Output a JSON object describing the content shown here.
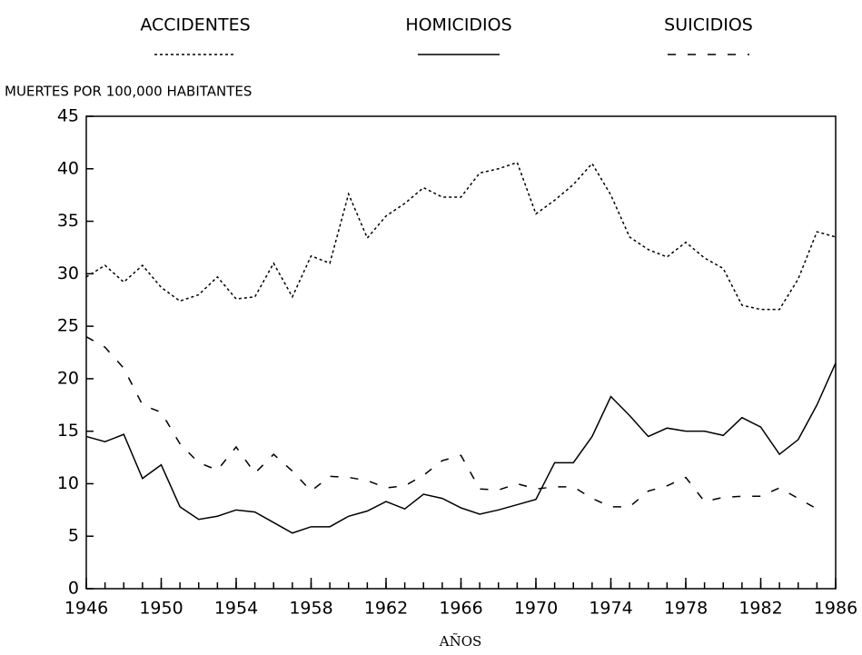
{
  "chart_data": {
    "type": "line",
    "y_label": "MUERTES POR 100,000 HABITANTES",
    "x_label": "AÑOS",
    "x": [
      1946,
      1947,
      1948,
      1949,
      1950,
      1951,
      1952,
      1953,
      1954,
      1955,
      1956,
      1957,
      1958,
      1959,
      1960,
      1961,
      1962,
      1963,
      1964,
      1965,
      1966,
      1967,
      1968,
      1969,
      1970,
      1971,
      1972,
      1973,
      1974,
      1975,
      1976,
      1977,
      1978,
      1979,
      1980,
      1981,
      1982,
      1983,
      1984,
      1985,
      1986
    ],
    "series": [
      {
        "name": "ACCIDENTES",
        "color": "#000000",
        "dash": "3,3",
        "values": [
          29.7,
          30.8,
          29.2,
          30.8,
          28.7,
          27.4,
          28.0,
          29.7,
          27.6,
          27.8,
          31.0,
          27.8,
          31.7,
          31.0,
          37.6,
          33.4,
          35.5,
          36.7,
          38.2,
          37.3,
          37.3,
          39.6,
          40.0,
          40.6,
          35.7,
          37.0,
          38.5,
          40.5,
          37.5,
          33.5,
          32.3,
          31.6,
          33.0,
          31.5,
          30.5,
          27.0,
          26.6,
          26.6,
          29.5,
          34.0,
          33.5
        ]
      },
      {
        "name": "HOMICIDIOS",
        "color": "#000000",
        "dash": "none",
        "values": [
          14.5,
          14.0,
          14.7,
          10.5,
          11.8,
          7.8,
          6.6,
          6.9,
          7.5,
          7.3,
          6.3,
          5.3,
          5.9,
          5.9,
          6.9,
          7.4,
          8.3,
          7.6,
          9.0,
          8.6,
          7.7,
          7.1,
          7.5,
          8.0,
          8.5,
          12.0,
          12.0,
          14.5,
          18.3,
          16.5,
          14.5,
          15.3,
          15.0,
          15.0,
          14.6,
          16.3,
          15.4,
          12.8,
          14.2,
          17.5,
          21.5
        ]
      },
      {
        "name": "SUICIDIOS",
        "color": "#000000",
        "dash": "9,13",
        "values": [
          24.0,
          23.0,
          21.0,
          17.5,
          16.8,
          13.8,
          12.0,
          11.3,
          13.5,
          11.0,
          12.8,
          11.2,
          9.3,
          10.7,
          10.6,
          10.3,
          9.6,
          9.8,
          10.8,
          12.2,
          12.7,
          9.5,
          9.4,
          10.0,
          9.5,
          9.7,
          9.7,
          8.6,
          7.8,
          7.8,
          9.3,
          9.8,
          10.6,
          8.3,
          8.7,
          8.8,
          8.8,
          9.6,
          8.6,
          7.6,
          null
        ]
      }
    ],
    "xlim": [
      1946,
      1986
    ],
    "xticks": [
      1946,
      1950,
      1954,
      1958,
      1962,
      1966,
      1970,
      1974,
      1978,
      1982,
      1986
    ],
    "ylim": [
      0,
      45
    ],
    "yticks": [
      0,
      5,
      10,
      15,
      20,
      25,
      30,
      35,
      40,
      45
    ],
    "grid": false
  }
}
